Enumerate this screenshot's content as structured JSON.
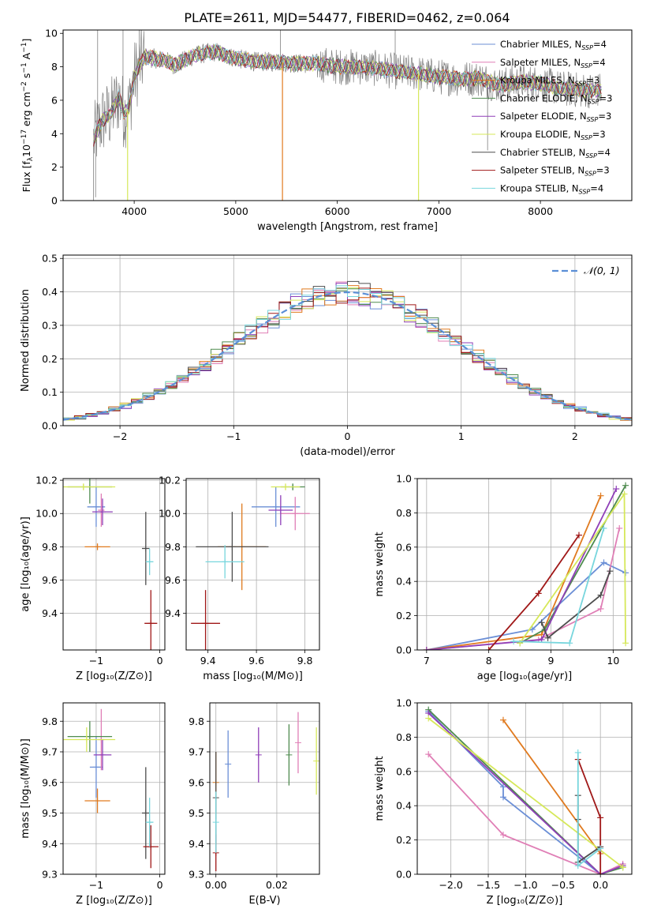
{
  "figure_title": "PLATE=2611, MJD=54477, FIBERID=0462, z=0.064",
  "colors": {
    "Chabrier MILES": "#6b8fd6",
    "Salpeter MILES": "#e07fb6",
    "Kroupa MILES": "#e07a1f",
    "Chabrier ELODIE": "#4f8b4f",
    "Salpeter ELODIE": "#8f3fb8",
    "Kroupa ELODIE": "#d6e85a",
    "Chabrier STELIB": "#4d4d4d",
    "Salpeter STELIB": "#a01818",
    "Kroupa STELIB": "#78d6dd",
    "data": "#808080",
    "normal": "#5b8fd6"
  },
  "chart_data": [
    {
      "id": "spectrum",
      "type": "line",
      "title": "PLATE=2611, MJD=54477, FIBERID=0462, z=0.064",
      "xlabel": "wavelength [Angstrom, rest frame]",
      "ylabel_parts": [
        "Flux [f",
        "λ",
        "10",
        "−17",
        " erg cm",
        "−2",
        " s",
        "−1",
        " A",
        "−1",
        "]"
      ],
      "xlim": [
        3300,
        8900
      ],
      "ylim": [
        0,
        10.2
      ],
      "xticks": [
        4000,
        5000,
        6000,
        7000,
        8000
      ],
      "yticks": [
        0,
        2,
        4,
        6,
        8,
        10
      ],
      "grid": false,
      "legend_position": "upper-right",
      "legend": [
        {
          "label": "Chabrier MILES, N",
          "sub": "SSP",
          "suffix": "=4"
        },
        {
          "label": "Salpeter MILES, N",
          "sub": "SSP",
          "suffix": "=4"
        },
        {
          "label": "Kroupa MILES, N",
          "sub": "SSP",
          "suffix": "=3"
        },
        {
          "label": "Chabrier ELODIE, N",
          "sub": "SSP",
          "suffix": "=3"
        },
        {
          "label": "Salpeter ELODIE, N",
          "sub": "SSP",
          "suffix": "=3"
        },
        {
          "label": "Kroupa ELODIE, N",
          "sub": "SSP",
          "suffix": "=3"
        },
        {
          "label": "Chabrier STELIB, N",
          "sub": "SSP",
          "suffix": "=4"
        },
        {
          "label": "Salpeter STELIB, N",
          "sub": "SSP",
          "suffix": "=3"
        },
        {
          "label": "Kroupa STELIB, N",
          "sub": "SSP",
          "suffix": "=4"
        }
      ],
      "continuum": {
        "x": [
          3600,
          3650,
          3700,
          3760,
          3850,
          3900,
          3950,
          4000,
          4100,
          4200,
          4300,
          4400,
          4500,
          4600,
          4700,
          4800,
          4900,
          5000,
          5200,
          5400,
          5600,
          5800,
          6000,
          6200,
          6400,
          6600,
          6800,
          7000,
          7200,
          7400,
          7600,
          7800,
          8000,
          8200,
          8400,
          8500,
          8600
        ],
        "y": [
          3.6,
          4.4,
          4.9,
          5.1,
          6.2,
          5.2,
          5.6,
          7.4,
          8.6,
          8.5,
          8.4,
          8.1,
          8.4,
          8.7,
          8.8,
          8.9,
          8.7,
          8.5,
          8.3,
          8.3,
          8.2,
          8.2,
          8.0,
          8.0,
          7.9,
          7.7,
          7.6,
          7.4,
          7.3,
          7.3,
          6.9,
          7.1,
          7.0,
          6.7,
          6.6,
          6.6,
          6.6
        ]
      },
      "spikes": [
        {
          "x": 3935,
          "y": 0.0,
          "color": "Kroupa ELODIE"
        },
        {
          "x": 5460,
          "y": 0.0,
          "color": "Kroupa MILES"
        },
        {
          "x": 6800,
          "y": 0.0,
          "color": "Kroupa ELODIE"
        }
      ]
    },
    {
      "id": "residuals",
      "type": "histogram",
      "xlabel": "(data-model)/error",
      "ylabel": "Normed distribution",
      "xlim": [
        -2.5,
        2.5
      ],
      "ylim": [
        0,
        0.51
      ],
      "xticks": [
        -2,
        -1,
        0,
        1,
        2
      ],
      "yticks": [
        0.0,
        0.1,
        0.2,
        0.3,
        0.4,
        0.5
      ],
      "grid": true,
      "legend_position": "upper-right",
      "legend": [
        "𝒩(0, 1)"
      ],
      "bin_width": 0.1
    },
    {
      "id": "age-vs-Z",
      "type": "scatter",
      "xlabel": "Z [log₁₀(Z/Z⊙)]",
      "ylabel": "age  [log₁₀(age/yr)]",
      "xlim": [
        -1.52,
        0.08
      ],
      "ylim": [
        9.18,
        10.21
      ],
      "xticks": [
        -1,
        0
      ],
      "yticks": [
        9.4,
        9.6,
        9.8,
        10.0,
        10.2
      ],
      "grid": true,
      "points": [
        {
          "model": "Chabrier MILES",
          "x": -1.0,
          "xerr": 0.14,
          "y": 10.04,
          "yerr": 0.12
        },
        {
          "model": "Salpeter MILES",
          "x": -0.92,
          "xerr": 0.05,
          "y": 10.02,
          "yerr": 0.1
        },
        {
          "model": "Kroupa MILES",
          "x": -0.98,
          "xerr": 0.2,
          "y": 9.8,
          "yerr": 0.02
        },
        {
          "model": "Chabrier ELODIE",
          "x": -1.1,
          "xerr": 0.35,
          "y": 10.16,
          "yerr": 0.1
        },
        {
          "model": "Salpeter ELODIE",
          "x": -0.9,
          "xerr": 0.16,
          "y": 10.01,
          "yerr": 0.08
        },
        {
          "model": "Kroupa ELODIE",
          "x": -1.2,
          "xerr": 0.5,
          "y": 10.16,
          "yerr": 0.02
        },
        {
          "model": "Chabrier STELIB",
          "x": -0.22,
          "xerr": 0.06,
          "y": 9.79,
          "yerr": 0.22
        },
        {
          "model": "Salpeter STELIB",
          "x": -0.14,
          "xerr": 0.1,
          "y": 9.34,
          "yerr": 0.2
        },
        {
          "model": "Kroupa STELIB",
          "x": -0.16,
          "xerr": 0.06,
          "y": 9.71,
          "yerr": 0.08
        }
      ]
    },
    {
      "id": "age-vs-mass",
      "type": "scatter",
      "xlabel": "mass [log₁₀(M/M⊙)]",
      "ylabel": "",
      "xlim": [
        9.31,
        9.86
      ],
      "ylim": [
        9.18,
        10.21
      ],
      "xticks": [
        9.4,
        9.6,
        9.8
      ],
      "yticks": [
        9.4,
        9.6,
        9.8,
        10.0,
        10.2
      ],
      "grid": true,
      "points": [
        {
          "model": "Chabrier MILES",
          "x": 9.68,
          "xerr": 0.1,
          "y": 10.04,
          "yerr": 0.12
        },
        {
          "model": "Salpeter MILES",
          "x": 9.76,
          "xerr": 0.06,
          "y": 10.0,
          "yerr": 0.1
        },
        {
          "model": "Kroupa MILES",
          "x": 9.54,
          "xerr": 0.1,
          "y": 9.8,
          "yerr": 0.26
        },
        {
          "model": "Chabrier ELODIE",
          "x": 9.75,
          "xerr": 0.05,
          "y": 10.16,
          "yerr": 0.02
        },
        {
          "model": "Salpeter ELODIE",
          "x": 9.7,
          "xerr": 0.05,
          "y": 10.02,
          "yerr": 0.09
        },
        {
          "model": "Kroupa ELODIE",
          "x": 9.72,
          "xerr": 0.06,
          "y": 10.16,
          "yerr": 0.02
        },
        {
          "model": "Chabrier STELIB",
          "x": 9.5,
          "xerr": 0.15,
          "y": 9.8,
          "yerr": 0.21
        },
        {
          "model": "Salpeter STELIB",
          "x": 9.39,
          "xerr": 0.06,
          "y": 9.34,
          "yerr": 0.2
        },
        {
          "model": "Kroupa STELIB",
          "x": 9.47,
          "xerr": 0.08,
          "y": 9.71,
          "yerr": 0.1
        }
      ]
    },
    {
      "id": "weight-vs-age",
      "type": "line",
      "xlabel": "age  [log₁₀(age/yr)]",
      "ylabel": "mass weight",
      "xlim": [
        6.85,
        10.3
      ],
      "ylim": [
        0,
        1.0
      ],
      "xticks": [
        7,
        8,
        9,
        10
      ],
      "yticks": [
        0.0,
        0.2,
        0.4,
        0.6,
        0.8,
        1.0
      ],
      "grid": true,
      "series": [
        {
          "model": "Chabrier MILES",
          "x": [
            7.0,
            8.7,
            9.85,
            10.2
          ],
          "y": [
            0.0,
            0.12,
            0.51,
            0.45
          ]
        },
        {
          "model": "Salpeter MILES",
          "x": [
            7.0,
            8.8,
            9.8,
            10.1
          ],
          "y": [
            0.0,
            0.06,
            0.24,
            0.71
          ]
        },
        {
          "model": "Kroupa MILES",
          "x": [
            7.0,
            8.85,
            9.8
          ],
          "y": [
            0.0,
            0.09,
            0.9
          ]
        },
        {
          "model": "Chabrier ELODIE",
          "x": [
            8.5,
            8.9,
            10.2
          ],
          "y": [
            0.04,
            0.12,
            0.96
          ]
        },
        {
          "model": "Salpeter ELODIE",
          "x": [
            7.0,
            8.85,
            10.05
          ],
          "y": [
            0.0,
            0.06,
            0.94
          ]
        },
        {
          "model": "Kroupa ELODIE",
          "x": [
            8.5,
            10.18,
            10.2
          ],
          "y": [
            0.04,
            0.91,
            0.04
          ]
        },
        {
          "model": "Chabrier STELIB",
          "x": [
            8.85,
            8.95,
            9.8,
            9.95
          ],
          "y": [
            0.16,
            0.07,
            0.32,
            0.46
          ]
        },
        {
          "model": "Salpeter STELIB",
          "x": [
            8.0,
            8.8,
            9.45
          ],
          "y": [
            0.0,
            0.33,
            0.67
          ]
        },
        {
          "model": "Kroupa STELIB",
          "x": [
            8.4,
            9.3,
            9.85
          ],
          "y": [
            0.05,
            0.04,
            0.71
          ]
        }
      ]
    },
    {
      "id": "mass-vs-Z",
      "type": "scatter",
      "xlabel": "Z [log₁₀(Z/Z⊙)]",
      "ylabel": "mass [log₁₀(M/M⊙)]",
      "xlim": [
        -1.52,
        0.08
      ],
      "ylim": [
        9.3,
        9.86
      ],
      "xticks": [
        -1,
        0
      ],
      "yticks": [
        9.3,
        9.4,
        9.5,
        9.6,
        9.7,
        9.8
      ],
      "grid": true,
      "points": [
        {
          "model": "Chabrier MILES",
          "x": -1.0,
          "xerr": 0.1,
          "y": 9.65,
          "yerr": 0.1
        },
        {
          "model": "Salpeter MILES",
          "x": -0.92,
          "xerr": 0.05,
          "y": 9.74,
          "yerr": 0.1
        },
        {
          "model": "Kroupa MILES",
          "x": -0.98,
          "xerr": 0.2,
          "y": 9.54,
          "yerr": 0.04
        },
        {
          "model": "Chabrier ELODIE",
          "x": -1.1,
          "xerr": 0.35,
          "y": 9.75,
          "yerr": 0.05
        },
        {
          "model": "Salpeter ELODIE",
          "x": -0.9,
          "xerr": 0.14,
          "y": 9.69,
          "yerr": 0.05
        },
        {
          "model": "Kroupa ELODIE",
          "x": -1.15,
          "xerr": 0.45,
          "y": 9.74,
          "yerr": 0.04
        },
        {
          "model": "Chabrier STELIB",
          "x": -0.22,
          "xerr": 0.06,
          "y": 9.5,
          "yerr": 0.15
        },
        {
          "model": "Salpeter STELIB",
          "x": -0.14,
          "xerr": 0.12,
          "y": 9.39,
          "yerr": 0.07
        },
        {
          "model": "Kroupa STELIB",
          "x": -0.16,
          "xerr": 0.06,
          "y": 9.47,
          "yerr": 0.08
        }
      ]
    },
    {
      "id": "mass-vs-ebv",
      "type": "scatter",
      "xlabel": "E(B-V)",
      "ylabel": "",
      "xlim": [
        -0.002,
        0.034
      ],
      "ylim": [
        9.3,
        9.86
      ],
      "xticks": [
        0.0,
        0.02
      ],
      "yticks": [
        9.3,
        9.4,
        9.5,
        9.6,
        9.7,
        9.8
      ],
      "grid": true,
      "points": [
        {
          "model": "Chabrier MILES",
          "x": 0.004,
          "y": 9.66,
          "yerr": 0.11
        },
        {
          "model": "Salpeter MILES",
          "x": 0.027,
          "y": 9.73,
          "yerr": 0.1
        },
        {
          "model": "Kroupa MILES",
          "x": 0.0,
          "y": 9.6,
          "yerr": 0.1
        },
        {
          "model": "Chabrier ELODIE",
          "x": 0.024,
          "y": 9.69,
          "yerr": 0.1
        },
        {
          "model": "Salpeter ELODIE",
          "x": 0.014,
          "y": 9.69,
          "yerr": 0.09
        },
        {
          "model": "Kroupa ELODIE",
          "x": 0.033,
          "y": 9.67,
          "yerr": 0.11
        },
        {
          "model": "Chabrier STELIB",
          "x": 0.0,
          "y": 9.55,
          "yerr": 0.15
        },
        {
          "model": "Salpeter STELIB",
          "x": 0.0,
          "y": 9.37,
          "yerr": 0.06
        },
        {
          "model": "Kroupa STELIB",
          "x": 0.0,
          "y": 9.47,
          "yerr": 0.1
        }
      ]
    },
    {
      "id": "weight-vs-Z",
      "type": "line",
      "xlabel": "Z [log₁₀(Z/Z⊙)]",
      "ylabel": "mass weight",
      "xlim": [
        -2.45,
        0.42
      ],
      "ylim": [
        0,
        1.0
      ],
      "xticks": [
        -2.0,
        -1.5,
        -1.0,
        -0.5,
        0.0
      ],
      "yticks": [
        0.0,
        0.2,
        0.4,
        0.6,
        0.8,
        1.0
      ],
      "grid": true,
      "series": [
        {
          "model": "Chabrier MILES",
          "x": [
            -2.3,
            -1.3,
            -1.3,
            0.0
          ],
          "y": [
            0.95,
            0.51,
            0.45,
            0.0
          ]
        },
        {
          "model": "Salpeter MILES",
          "x": [
            -2.3,
            -1.3,
            0.0,
            0.3
          ],
          "y": [
            0.7,
            0.23,
            0.0,
            0.06
          ]
        },
        {
          "model": "Kroupa MILES",
          "x": [
            -1.3,
            0.0
          ],
          "y": [
            0.9,
            0.12
          ]
        },
        {
          "model": "Chabrier ELODIE",
          "x": [
            -2.3,
            0.0,
            0.3
          ],
          "y": [
            0.96,
            0.0,
            0.04
          ]
        },
        {
          "model": "Salpeter ELODIE",
          "x": [
            -2.3,
            0.0,
            0.3
          ],
          "y": [
            0.94,
            0.0,
            0.05
          ]
        },
        {
          "model": "Kroupa ELODIE",
          "x": [
            -2.3,
            0.3
          ],
          "y": [
            0.91,
            0.04
          ]
        },
        {
          "model": "Chabrier STELIB",
          "x": [
            -0.3,
            -0.3,
            -0.3,
            0.0
          ],
          "y": [
            0.46,
            0.32,
            0.07,
            0.16
          ]
        },
        {
          "model": "Salpeter STELIB",
          "x": [
            -0.3,
            0.0,
            0.0
          ],
          "y": [
            0.67,
            0.33,
            0.0
          ]
        },
        {
          "model": "Kroupa STELIB",
          "x": [
            -0.3,
            -0.3,
            0.0
          ],
          "y": [
            0.71,
            0.05,
            0.15
          ]
        }
      ]
    }
  ]
}
